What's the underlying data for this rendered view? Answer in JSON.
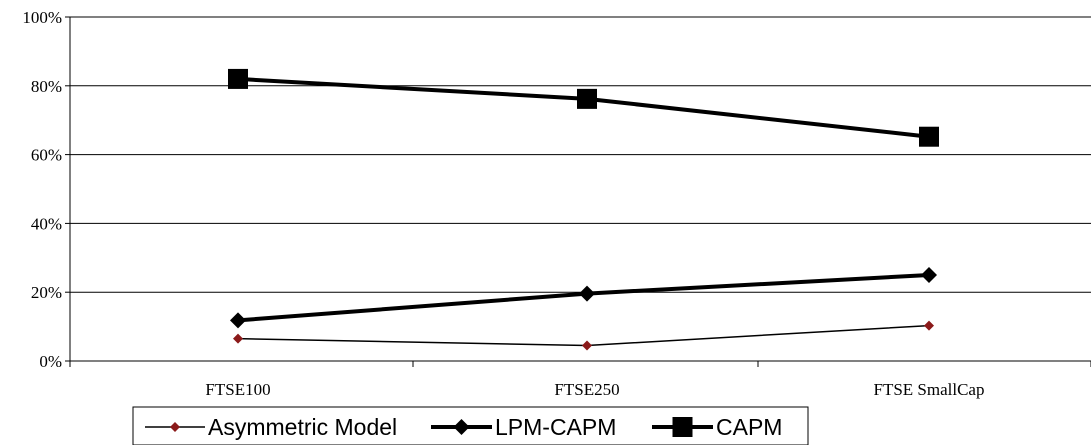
{
  "chart_data": {
    "type": "line",
    "categories": [
      "FTSE100",
      "FTSE250",
      "FTSE SmallCap"
    ],
    "ylim": [
      0,
      100
    ],
    "yticks": [
      0,
      20,
      40,
      60,
      80,
      100
    ],
    "ytick_labels": [
      "0%",
      "20%",
      "40%",
      "60%",
      "80%",
      "100%"
    ],
    "grid": true,
    "legend_placement": "bottom",
    "series": [
      {
        "name": "Asymmetric Model",
        "values": [
          6.5,
          4.5,
          10.3
        ],
        "color": "#000000",
        "marker_color": "#8b1a1a",
        "marker": "diamond-small",
        "line": "thin"
      },
      {
        "name": "LPM-CAPM",
        "values": [
          11.8,
          19.6,
          25.0
        ],
        "color": "#000000",
        "marker_color": "#000000",
        "marker": "diamond",
        "line": "thick"
      },
      {
        "name": "CAPM",
        "values": [
          82.0,
          76.2,
          65.2
        ],
        "color": "#000000",
        "marker_color": "#000000",
        "marker": "square",
        "line": "thick"
      }
    ]
  }
}
